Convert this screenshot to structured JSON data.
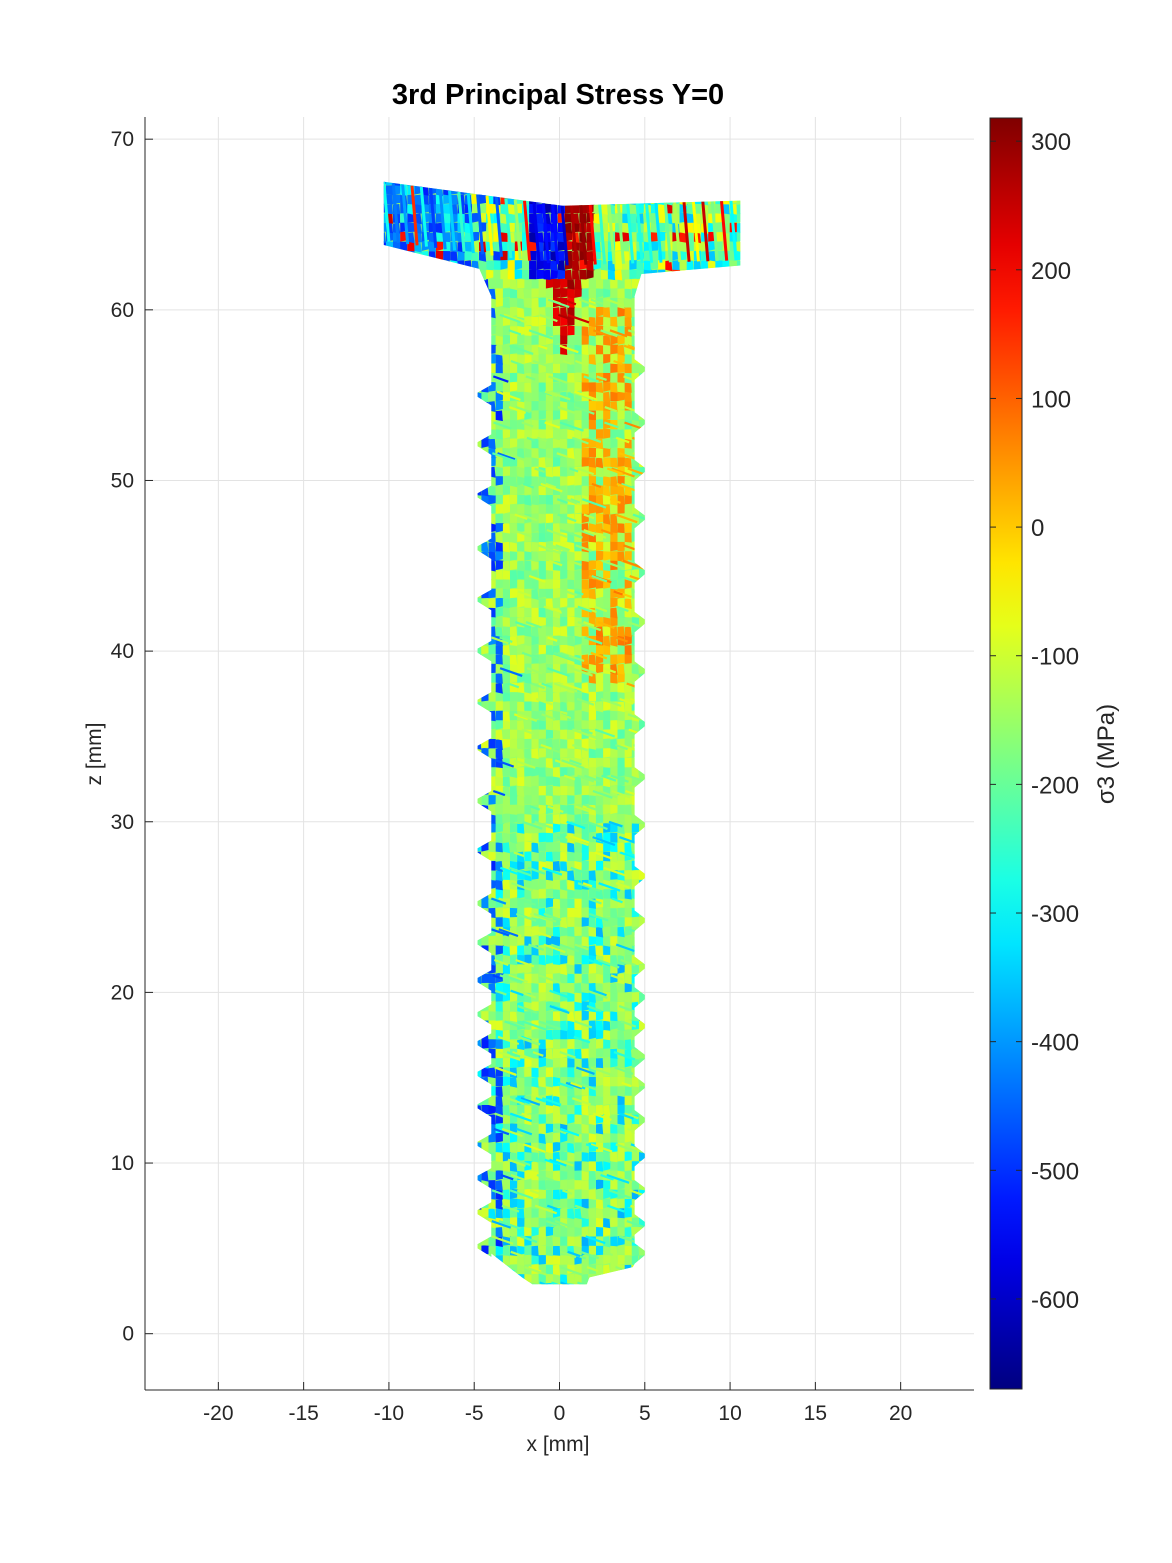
{
  "chart_data": {
    "type": "heatmap",
    "title": "3rd Principal Stress Y=0",
    "xlabel": "x [mm]",
    "ylabel": "z [mm]",
    "xlim": [
      -24.3,
      24.3
    ],
    "ylim": [
      -3.3,
      71.3
    ],
    "x_ticks": [
      -20,
      -15,
      -10,
      -5,
      0,
      5,
      10,
      15,
      20
    ],
    "y_ticks": [
      0,
      10,
      20,
      30,
      40,
      50,
      60,
      70
    ],
    "grid": true,
    "colormap": "jet",
    "colorbar": {
      "label": "σ3 (MPa)",
      "range": [
        -670,
        318
      ],
      "ticks": [
        300,
        200,
        100,
        0,
        -100,
        -200,
        -300,
        -400,
        -500,
        -600
      ],
      "placement": "right"
    },
    "geometry": {
      "head": {
        "left_edge": {
          "x": -10.3,
          "z_top": 67.5,
          "z_bottom": 63.8
        },
        "center": {
          "x": 0.2,
          "z_top": 66.1,
          "z_bottom": 61.8
        },
        "right_edge": {
          "x": 10.6,
          "z_top": 66.4,
          "z_bottom": 62.6
        },
        "neck_half_width_left": -4.7,
        "neck_half_width_right": 4.8
      },
      "shank": {
        "core_left": -4.0,
        "core_right": 4.4,
        "z_top": 61.8,
        "z_bottom": 3.3,
        "tip_z": 2.6
      },
      "threads": {
        "left_z": [
          55.0,
          52.1,
          49.1,
          46.0,
          43.0,
          40.0,
          37.0,
          34.3,
          31.2,
          28.3,
          25.2,
          22.9,
          20.7,
          18.7,
          17.0,
          15.2,
          13.3,
          11.1,
          9.1,
          7.1,
          5.1
        ],
        "left_x": -4.8,
        "right_z": [
          56.5,
          53.4,
          50.6,
          47.8,
          44.6,
          41.7,
          38.8,
          35.7,
          32.6,
          29.8,
          26.8,
          24.2,
          21.5,
          19.7,
          18.0,
          16.2,
          14.5,
          12.5,
          10.4,
          8.4,
          6.4,
          4.7
        ],
        "right_x": 5.0
      }
    },
    "stress_features": {
      "tension_peak_center": {
        "x": 0.5,
        "z": 64.5,
        "value": 310
      },
      "compression_peak_head": {
        "x": -1.0,
        "z": 64.5,
        "value": -640
      },
      "tension_band_right_shank": {
        "x_range": [
          1.5,
          4.3
        ],
        "z_range": [
          38,
          60
        ],
        "value": 40
      },
      "core_average": -150,
      "thread_root_compression": -520
    }
  }
}
